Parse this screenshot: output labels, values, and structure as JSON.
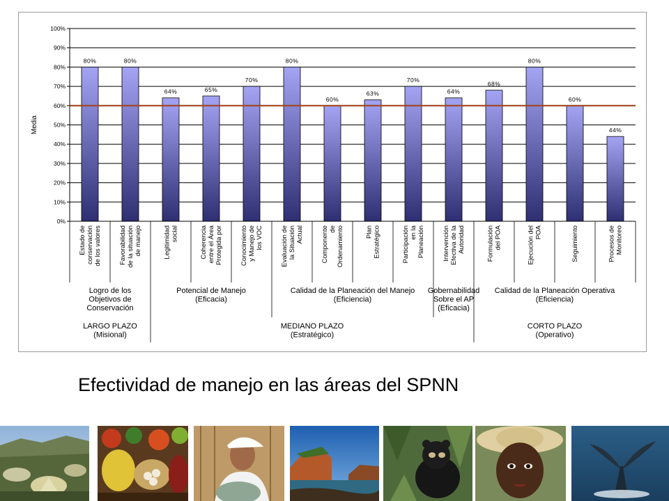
{
  "slide": {
    "caption": "Efectividad de manejo en las áreas del SPNN"
  },
  "chart_data": {
    "type": "bar",
    "ylabel": "Media",
    "ylim": [
      0,
      100
    ],
    "yticks": [
      "0%",
      "10%",
      "20%",
      "30%",
      "40%",
      "50%",
      "60%",
      "70%",
      "80%",
      "90%",
      "100%"
    ],
    "reference_line": 60,
    "colors": {
      "bar_top": "#a4a4f4",
      "bar_bottom": "#2e2e72",
      "reference": "#a0461e",
      "grid": "#000000"
    },
    "categories": [
      [
        "Estado de",
        "conservación",
        "de los valores"
      ],
      [
        "Favorabilidad",
        "de la situación",
        "de manejo"
      ],
      [
        "Legitimidad",
        "social"
      ],
      [
        "Coherencia",
        "entre el Área",
        "Protegida por"
      ],
      [
        "Conocimiento",
        "y Manejo de",
        "los VOC"
      ],
      [
        "Evaluación de",
        "la Situación",
        "Actual"
      ],
      [
        "Componente",
        "de",
        "Ordenamiento"
      ],
      [
        "Plan",
        "Estratégico"
      ],
      [
        "Participación",
        "en la",
        "Planeación"
      ],
      [
        "Intervención",
        "Efectiva de la",
        "Autoridad"
      ],
      [
        "Formulación",
        "del POA"
      ],
      [
        "Ejecución del",
        "POA"
      ],
      [
        "Seguimiento"
      ],
      [
        "Procesos de",
        "Monitoreo"
      ]
    ],
    "values": [
      80,
      80,
      64,
      65,
      70,
      80,
      60,
      63,
      70,
      64,
      68,
      80,
      60,
      44
    ],
    "data_labels": [
      "80%",
      "80%",
      "64%",
      "65%",
      "70%",
      "80%",
      "60%",
      "63%",
      "70%",
      "64%",
      "68%",
      "80%",
      "60%",
      "44%"
    ],
    "groups": [
      {
        "lines": [
          "Logro de los",
          "Objetivos de",
          "Conservación"
        ],
        "start": 0,
        "end": 2
      },
      {
        "lines": [
          "Potencial de Manejo",
          "(Eficacia)"
        ],
        "start": 2,
        "end": 5
      },
      {
        "lines": [
          "Calidad de la Planeación del Manejo",
          "(Eficiencia)"
        ],
        "start": 5,
        "end": 9
      },
      {
        "lines": [
          "Gobernabilidad",
          "Sobre el AP",
          "(Eficacia)"
        ],
        "start": 9,
        "end": 10
      },
      {
        "lines": [
          "Calidad de la Planeación Operativa",
          "(Eficiencia)"
        ],
        "start": 10,
        "end": 14
      }
    ],
    "horizons": [
      {
        "lines": [
          "LARGO PLAZO",
          "(Misional)"
        ],
        "start": 0,
        "end": 2
      },
      {
        "lines": [
          "MEDIANO PLAZO",
          "(Estratégico)"
        ],
        "start": 2,
        "end": 10
      },
      {
        "lines": [
          "CORTO PLAZO",
          "(Operativo)"
        ],
        "start": 10,
        "end": 14
      }
    ]
  },
  "photos": [
    {
      "subject": "paramo-frailejones"
    },
    {
      "subject": "market-produce"
    },
    {
      "subject": "woman-with-cap"
    },
    {
      "subject": "coastal-cliffs"
    },
    {
      "subject": "spectacled-bear"
    },
    {
      "subject": "child-with-hat"
    },
    {
      "subject": "whale-tail"
    }
  ]
}
